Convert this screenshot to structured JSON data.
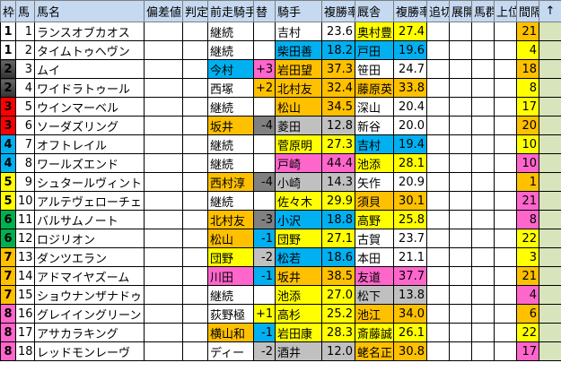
{
  "colors": {
    "white": "#ffffff",
    "orange": "#ffc000",
    "blue": "#00b0f0",
    "pink": "#ff66cc",
    "yellow": "#ffff00",
    "gray": "#c0c0c0",
    "darkgray": "#808080",
    "arrow_col": "#d8e4bc",
    "waku": {
      "1": "#ffffff",
      "2": "#555555",
      "3": "#ff0000",
      "4": "#00b0f0",
      "5": "#ffff00",
      "6": "#00b050",
      "7": "#ffc000",
      "8": "#ff66cc"
    }
  },
  "headers": [
    "枠",
    "馬",
    "馬名",
    "偏差値",
    "判定",
    "前走騎手",
    "替",
    "騎手",
    "複勝率",
    "厩舎",
    "複勝率",
    "追切",
    "展開",
    "馬群",
    "上位",
    "間隔",
    "↑"
  ],
  "rows": [
    {
      "waku": "1",
      "num": "1",
      "name": "ランスオブカオス",
      "prev": "継続",
      "prev_c": "white",
      "chg": "",
      "chg_c": "white",
      "jockey": "吉村",
      "j_c": "white",
      "j_rate": "23.6",
      "trainer": "奥村豊",
      "t_c": "yellow",
      "t_rate": "27.4",
      "interval": "21",
      "i_c": "orange"
    },
    {
      "waku": "1",
      "num": "2",
      "name": "タイムトゥヘヴン",
      "prev": "継続",
      "prev_c": "white",
      "chg": "",
      "chg_c": "white",
      "jockey": "柴田善",
      "j_c": "blue",
      "j_rate": "18.2",
      "trainer": "戸田",
      "t_c": "blue",
      "t_rate": "19.6",
      "interval": "4",
      "i_c": "yellow"
    },
    {
      "waku": "2",
      "num": "3",
      "name": "ムイ",
      "prev": "今村",
      "prev_c": "blue",
      "chg": "+3",
      "chg_c": "pink",
      "jockey": "岩田望",
      "j_c": "orange",
      "j_rate": "37.3",
      "trainer": "笹田",
      "t_c": "white",
      "t_rate": "24.7",
      "interval": "18",
      "i_c": "orange"
    },
    {
      "waku": "2",
      "num": "4",
      "name": "ワイドラトゥール",
      "prev": "西塚",
      "prev_c": "white",
      "chg": "+2",
      "chg_c": "orange",
      "jockey": "北村友",
      "j_c": "orange",
      "j_rate": "32.4",
      "trainer": "藤原英",
      "t_c": "orange",
      "t_rate": "33.8",
      "interval": "8",
      "i_c": "yellow"
    },
    {
      "waku": "3",
      "num": "5",
      "name": "ウインマーベル",
      "prev": "継続",
      "prev_c": "white",
      "chg": "",
      "chg_c": "white",
      "jockey": "松山",
      "j_c": "orange",
      "j_rate": "34.5",
      "trainer": "深山",
      "t_c": "white",
      "t_rate": "20.4",
      "interval": "17",
      "i_c": "yellow"
    },
    {
      "waku": "3",
      "num": "6",
      "name": "ソーダズリング",
      "prev": "坂井",
      "prev_c": "orange",
      "chg": "-4",
      "chg_c": "darkgray",
      "jockey": "菱田",
      "j_c": "gray",
      "j_rate": "12.8",
      "trainer": "新谷",
      "t_c": "white",
      "t_rate": "20.0",
      "interval": "20",
      "i_c": "orange"
    },
    {
      "waku": "4",
      "num": "7",
      "name": "オフトレイル",
      "prev": "継続",
      "prev_c": "white",
      "chg": "",
      "chg_c": "white",
      "jockey": "菅原明",
      "j_c": "yellow",
      "j_rate": "27.3",
      "trainer": "吉村",
      "t_c": "blue",
      "t_rate": "19.4",
      "interval": "10",
      "i_c": "yellow"
    },
    {
      "waku": "4",
      "num": "8",
      "name": "ワールズエンド",
      "prev": "継続",
      "prev_c": "white",
      "chg": "",
      "chg_c": "white",
      "jockey": "戸崎",
      "j_c": "pink",
      "j_rate": "44.4",
      "trainer": "池添",
      "t_c": "yellow",
      "t_rate": "28.1",
      "interval": "10",
      "i_c": "pink"
    },
    {
      "waku": "5",
      "num": "9",
      "name": "シュタールヴィント",
      "prev": "西村淳",
      "prev_c": "orange",
      "chg": "-4",
      "chg_c": "darkgray",
      "jockey": "小崎",
      "j_c": "gray",
      "j_rate": "14.3",
      "trainer": "矢作",
      "t_c": "white",
      "t_rate": "20.9",
      "interval": "1",
      "i_c": "orange"
    },
    {
      "waku": "5",
      "num": "10",
      "name": "アルテヴェローチェ",
      "prev": "継続",
      "prev_c": "white",
      "chg": "",
      "chg_c": "white",
      "jockey": "佐々木",
      "j_c": "yellow",
      "j_rate": "29.9",
      "trainer": "須貝",
      "t_c": "orange",
      "t_rate": "30.1",
      "interval": "21",
      "i_c": "pink"
    },
    {
      "waku": "6",
      "num": "11",
      "name": "バルサムノート",
      "prev": "北村友",
      "prev_c": "orange",
      "chg": "-3",
      "chg_c": "darkgray",
      "jockey": "小沢",
      "j_c": "blue",
      "j_rate": "18.8",
      "trainer": "高野",
      "t_c": "yellow",
      "t_rate": "25.8",
      "interval": "8",
      "i_c": "pink"
    },
    {
      "waku": "6",
      "num": "12",
      "name": "ロジリオン",
      "prev": "松山",
      "prev_c": "orange",
      "chg": "-1",
      "chg_c": "blue",
      "jockey": "団野",
      "j_c": "yellow",
      "j_rate": "27.1",
      "trainer": "古賀",
      "t_c": "white",
      "t_rate": "23.7",
      "interval": "22",
      "i_c": "yellow"
    },
    {
      "waku": "7",
      "num": "13",
      "name": "ダンツエラン",
      "prev": "団野",
      "prev_c": "yellow",
      "chg": "-2",
      "chg_c": "gray",
      "jockey": "松若",
      "j_c": "blue",
      "j_rate": "18.6",
      "trainer": "本田",
      "t_c": "white",
      "t_rate": "21.1",
      "interval": "3",
      "i_c": "yellow"
    },
    {
      "waku": "7",
      "num": "14",
      "name": "アドマイヤズーム",
      "prev": "川田",
      "prev_c": "pink",
      "chg": "-1",
      "chg_c": "blue",
      "jockey": "坂井",
      "j_c": "orange",
      "j_rate": "38.5",
      "trainer": "友道",
      "t_c": "pink",
      "t_rate": "37.7",
      "interval": "21",
      "i_c": "orange"
    },
    {
      "waku": "7",
      "num": "15",
      "name": "ショウナンザナドゥ",
      "prev": "継続",
      "prev_c": "white",
      "chg": "",
      "chg_c": "white",
      "jockey": "池添",
      "j_c": "yellow",
      "j_rate": "27.0",
      "trainer": "松下",
      "t_c": "gray",
      "t_rate": "13.8",
      "interval": "4",
      "i_c": "pink"
    },
    {
      "waku": "8",
      "num": "16",
      "name": "グレイイングリーン",
      "prev": "荻野極",
      "prev_c": "white",
      "chg": "+1",
      "chg_c": "yellow",
      "jockey": "高杉",
      "j_c": "yellow",
      "j_rate": "25.2",
      "trainer": "池江",
      "t_c": "orange",
      "t_rate": "34.0",
      "interval": "6",
      "i_c": "orange"
    },
    {
      "waku": "8",
      "num": "17",
      "name": "アサカラキング",
      "prev": "横山和",
      "prev_c": "orange",
      "chg": "-1",
      "chg_c": "blue",
      "jockey": "岩田康",
      "j_c": "yellow",
      "j_rate": "28.3",
      "trainer": "斎藤誠",
      "t_c": "yellow",
      "t_rate": "26.1",
      "interval": "22",
      "i_c": "yellow"
    },
    {
      "waku": "8",
      "num": "18",
      "name": "レッドモンレーヴ",
      "prev": "ディー",
      "prev_c": "white",
      "chg": "-2",
      "chg_c": "gray",
      "jockey": "酒井",
      "j_c": "gray",
      "j_rate": "12.0",
      "trainer": "蛯名正",
      "t_c": "orange",
      "t_rate": "30.8",
      "interval": "17",
      "i_c": "pink"
    }
  ]
}
